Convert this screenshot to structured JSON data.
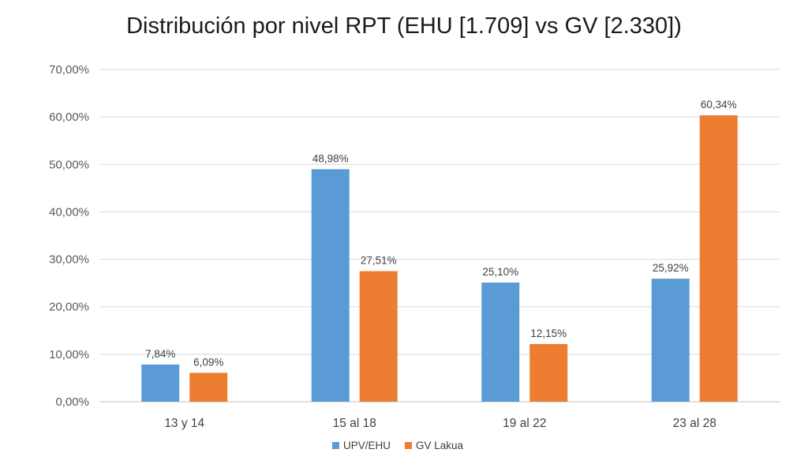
{
  "chart_data": {
    "type": "bar",
    "title": "Distribución por nivel RPT (EHU [1.709] vs GV [2.330])",
    "categories": [
      "13 y 14",
      "15 al 18",
      "19 al 22",
      "23 al 28"
    ],
    "series": [
      {
        "name": "UPV/EHU",
        "color": "#5b9bd5",
        "values": [
          7.84,
          48.98,
          25.1,
          25.92
        ],
        "labels": [
          "7,84%",
          "48,98%",
          "25,10%",
          "25,92%"
        ]
      },
      {
        "name": "GV Lakua",
        "color": "#ed7d31",
        "values": [
          6.09,
          27.51,
          12.15,
          60.34
        ],
        "labels": [
          "6,09%",
          "27,51%",
          "12,15%",
          "60,34%"
        ]
      }
    ],
    "ylim": [
      0,
      70
    ],
    "yticks": [
      0,
      10,
      20,
      30,
      40,
      50,
      60,
      70
    ],
    "ytick_labels": [
      "0,00%",
      "10,00%",
      "20,00%",
      "30,00%",
      "40,00%",
      "50,00%",
      "60,00%",
      "70,00%"
    ],
    "xlabel": "",
    "ylabel": "",
    "grid": true,
    "legend": "bottom"
  }
}
